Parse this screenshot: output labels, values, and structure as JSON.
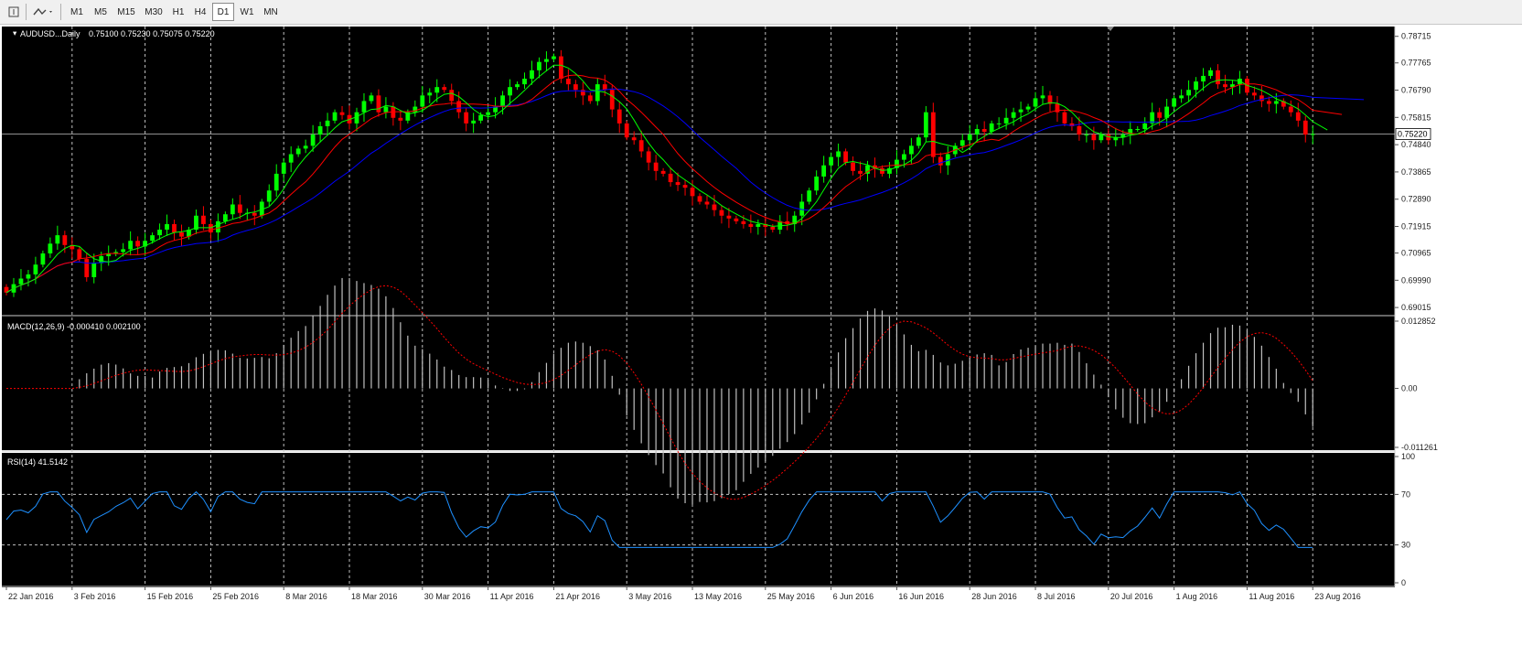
{
  "toolbar": {
    "timeframes": [
      "M1",
      "M5",
      "M15",
      "M30",
      "H1",
      "H4",
      "D1",
      "W1",
      "MN"
    ],
    "active": "D1"
  },
  "main_panel": {
    "symbol_label": "AUDUSD...Daily",
    "ohlc": "0.75100 0.75230 0.75075 0.75220",
    "price_ticks": [
      "0.78715",
      "0.77765",
      "0.76790",
      "0.75815",
      "0.74840",
      "0.73865",
      "0.72890",
      "0.71915",
      "0.70965",
      "0.69990",
      "0.69015"
    ],
    "current_price": "0.75220",
    "price_range": [
      0.6879,
      0.79
    ]
  },
  "macd_panel": {
    "label": "MACD(12,26,9) -0.000410 0.002100",
    "ticks": [
      "0.012852",
      "0.00",
      "-0.011261"
    ]
  },
  "rsi_panel": {
    "label": "RSI(14) 41.5142",
    "ticks": [
      "100",
      "70",
      "30",
      "0"
    ]
  },
  "date_labels": [
    "22 Jan 2016",
    "3 Feb 2016",
    "15 Feb 2016",
    "25 Feb 2016",
    "8 Mar 2016",
    "18 Mar 2016",
    "30 Mar 2016",
    "11 Apr 2016",
    "21 Apr 2016",
    "3 May 2016",
    "13 May 2016",
    "25 May 2016",
    "6 Jun 2016",
    "16 Jun 2016",
    "28 Jun 2016",
    "8 Jul 2016",
    "20 Jul 2016",
    "1 Aug 2016",
    "11 Aug 2016",
    "23 Aug 2016"
  ],
  "colors": {
    "background": "#000000",
    "bull_candle": "#00ff00",
    "bear_candle": "#ff0000",
    "ma_fast": "#00ff00",
    "ma_mid": "#ff0000",
    "ma_slow": "#0000ff",
    "macd_signal": "#ff0000",
    "macd_hist": "#c0c0c0",
    "rsi_line": "#1e90ff",
    "grid": "#c0c0c0",
    "price_line": "#c0c0c0"
  },
  "chart_data": {
    "type": "candlestick",
    "closes": [
      0.6955,
      0.6985,
      0.7005,
      0.702,
      0.7055,
      0.7095,
      0.713,
      0.716,
      0.7125,
      0.711,
      0.7075,
      0.701,
      0.706,
      0.7085,
      0.7095,
      0.71,
      0.711,
      0.714,
      0.712,
      0.714,
      0.716,
      0.718,
      0.72,
      0.717,
      0.7155,
      0.718,
      0.723,
      0.72,
      0.717,
      0.721,
      0.7235,
      0.727,
      0.724,
      0.724,
      0.723,
      0.728,
      0.732,
      0.738,
      0.742,
      0.745,
      0.747,
      0.748,
      0.752,
      0.755,
      0.757,
      0.76,
      0.759,
      0.756,
      0.76,
      0.764,
      0.766,
      0.76,
      0.762,
      0.758,
      0.757,
      0.76,
      0.762,
      0.766,
      0.767,
      0.769,
      0.768,
      0.764,
      0.76,
      0.756,
      0.757,
      0.759,
      0.76,
      0.762,
      0.766,
      0.769,
      0.77,
      0.772,
      0.775,
      0.778,
      0.779,
      0.78,
      0.772,
      0.77,
      0.768,
      0.766,
      0.764,
      0.77,
      0.768,
      0.761,
      0.756,
      0.751,
      0.75,
      0.746,
      0.742,
      0.739,
      0.738,
      0.735,
      0.734,
      0.733,
      0.73,
      0.728,
      0.727,
      0.725,
      0.723,
      0.722,
      0.721,
      0.72,
      0.719,
      0.72,
      0.719,
      0.718,
      0.721,
      0.72,
      0.723,
      0.728,
      0.732,
      0.737,
      0.741,
      0.744,
      0.746,
      0.742,
      0.739,
      0.738,
      0.741,
      0.74,
      0.738,
      0.74,
      0.743,
      0.745,
      0.748,
      0.751,
      0.76,
      0.744,
      0.741,
      0.745,
      0.748,
      0.75,
      0.752,
      0.754,
      0.753,
      0.756,
      0.756,
      0.758,
      0.76,
      0.761,
      0.762,
      0.765,
      0.766,
      0.763,
      0.76,
      0.756,
      0.755,
      0.752,
      0.752,
      0.75,
      0.752,
      0.75,
      0.751,
      0.752,
      0.754,
      0.754,
      0.756,
      0.76,
      0.758,
      0.762,
      0.765,
      0.766,
      0.768,
      0.771,
      0.773,
      0.775,
      0.77,
      0.769,
      0.77,
      0.772,
      0.767,
      0.766,
      0.764,
      0.763,
      0.764,
      0.762,
      0.76,
      0.757,
      0.752,
      0.7522
    ],
    "yrange": [
      0.6879,
      0.79
    ]
  }
}
